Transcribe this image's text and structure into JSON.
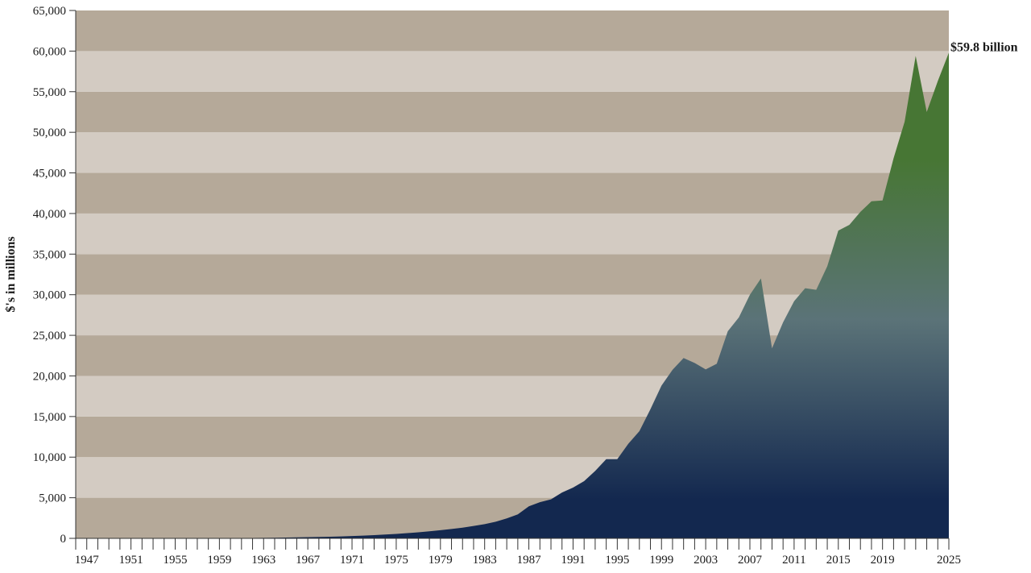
{
  "chart_data": {
    "type": "area",
    "title": "",
    "xlabel": "",
    "ylabel": "$'s in millions",
    "xlim": [
      1946,
      2025
    ],
    "ylim": [
      0,
      65000
    ],
    "grid": "alternating horizontal bands",
    "band_colors": [
      "#b5a999",
      "#d3cbc2"
    ],
    "gradient_colors": {
      "top": "#477634",
      "middle": "#5b7378",
      "bottom": "#13284f"
    },
    "x_ticks": [
      1947,
      1951,
      1955,
      1959,
      1963,
      1967,
      1971,
      1975,
      1979,
      1983,
      1987,
      1991,
      1995,
      1999,
      2003,
      2007,
      2011,
      2015,
      2019,
      2025
    ],
    "y_ticks": [
      0,
      5000,
      10000,
      15000,
      20000,
      25000,
      30000,
      35000,
      40000,
      45000,
      50000,
      55000,
      60000,
      65000
    ],
    "y_tick_labels": [
      "0",
      "5,000",
      "10,000",
      "15,000",
      "20,000",
      "25,000",
      "30,000",
      "35,000",
      "40,000",
      "45,000",
      "50,000",
      "55,000",
      "60,000",
      "65,000"
    ],
    "annotation": {
      "text": "$59.8 billion",
      "x": 2025,
      "y": 59800
    },
    "series": [
      {
        "points": [
          [
            1946,
            0
          ],
          [
            1947,
            5
          ],
          [
            1948,
            6
          ],
          [
            1949,
            8
          ],
          [
            1950,
            10
          ],
          [
            1951,
            12
          ],
          [
            1952,
            14
          ],
          [
            1953,
            16
          ],
          [
            1954,
            18
          ],
          [
            1955,
            20
          ],
          [
            1956,
            23
          ],
          [
            1957,
            26
          ],
          [
            1958,
            30
          ],
          [
            1959,
            35
          ],
          [
            1960,
            40
          ],
          [
            1961,
            46
          ],
          [
            1962,
            55
          ],
          [
            1963,
            65
          ],
          [
            1964,
            80
          ],
          [
            1965,
            100
          ],
          [
            1966,
            120
          ],
          [
            1967,
            145
          ],
          [
            1968,
            170
          ],
          [
            1969,
            200
          ],
          [
            1970,
            240
          ],
          [
            1971,
            285
          ],
          [
            1972,
            340
          ],
          [
            1973,
            400
          ],
          [
            1974,
            470
          ],
          [
            1975,
            550
          ],
          [
            1976,
            640
          ],
          [
            1977,
            750
          ],
          [
            1978,
            870
          ],
          [
            1979,
            1000
          ],
          [
            1980,
            1150
          ],
          [
            1981,
            1320
          ],
          [
            1982,
            1520
          ],
          [
            1983,
            1750
          ],
          [
            1984,
            2050
          ],
          [
            1985,
            2450
          ],
          [
            1986,
            2950
          ],
          [
            1987,
            3950
          ],
          [
            1988,
            4450
          ],
          [
            1989,
            4800
          ],
          [
            1990,
            5650
          ],
          [
            1991,
            6250
          ],
          [
            1992,
            7050
          ],
          [
            1993,
            8300
          ],
          [
            1994,
            9750
          ],
          [
            1995,
            9750
          ],
          [
            1996,
            11650
          ],
          [
            1997,
            13200
          ],
          [
            1998,
            15900
          ],
          [
            1999,
            18800
          ],
          [
            2000,
            20750
          ],
          [
            2001,
            22200
          ],
          [
            2002,
            21600
          ],
          [
            2003,
            20800
          ],
          [
            2004,
            21500
          ],
          [
            2005,
            25500
          ],
          [
            2006,
            27200
          ],
          [
            2007,
            30000
          ],
          [
            2008,
            32000
          ],
          [
            2009,
            23400
          ],
          [
            2010,
            26600
          ],
          [
            2011,
            29200
          ],
          [
            2012,
            30800
          ],
          [
            2013,
            30600
          ],
          [
            2014,
            33500
          ],
          [
            2015,
            37900
          ],
          [
            2016,
            38600
          ],
          [
            2017,
            40200
          ],
          [
            2018,
            41500
          ],
          [
            2019,
            41600
          ],
          [
            2020,
            46800
          ],
          [
            2021,
            51300
          ],
          [
            2022,
            59400
          ],
          [
            2023,
            52500
          ],
          [
            2024,
            56300
          ],
          [
            2025,
            59800
          ]
        ]
      }
    ]
  }
}
